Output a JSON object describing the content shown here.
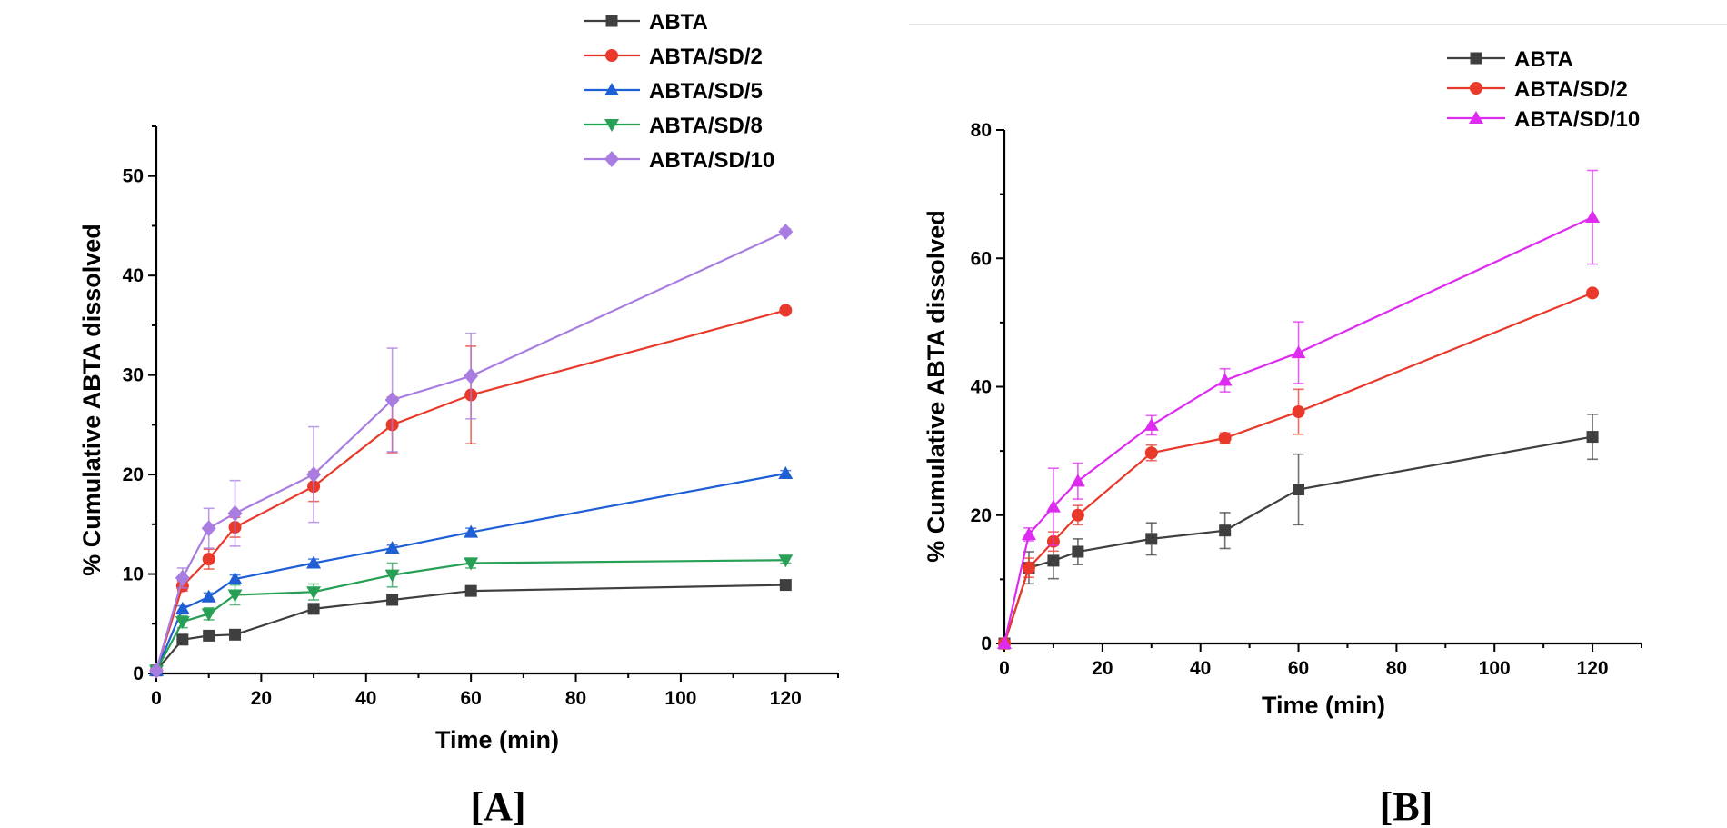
{
  "chart_data": [
    {
      "type": "line",
      "panel_label": "[A]",
      "title": "",
      "xlabel": "Time (min)",
      "ylabel": "% Cumulative ABTA dissolved",
      "xlim": [
        0,
        130
      ],
      "ylim": [
        0,
        55
      ],
      "xticks": [
        0,
        20,
        40,
        60,
        80,
        100,
        120
      ],
      "yticks": [
        0,
        10,
        20,
        30,
        40,
        50
      ],
      "legend": "top-right",
      "x": [
        0,
        5,
        10,
        15,
        30,
        45,
        60,
        120
      ],
      "series": [
        {
          "name": "ABTA",
          "color": "#3f3f3f",
          "marker": "square",
          "values": [
            0.3,
            3.4,
            3.8,
            3.9,
            6.5,
            7.4,
            8.3,
            8.9
          ],
          "errors": [
            0,
            0.3,
            0.3,
            0.3,
            0.4,
            0.4,
            0.3,
            0.3
          ]
        },
        {
          "name": "ABTA/SD/2",
          "color": "#e8392b",
          "marker": "circle",
          "values": [
            0.3,
            8.8,
            11.5,
            14.7,
            18.8,
            25.0,
            28.0,
            36.5
          ],
          "errors": [
            0,
            0.5,
            1.0,
            1.0,
            1.5,
            2.8,
            4.9,
            0.3
          ]
        },
        {
          "name": "ABTA/SD/5",
          "color": "#1f5fd6",
          "marker": "triangle-up",
          "values": [
            0.3,
            6.5,
            7.7,
            9.5,
            11.1,
            12.6,
            14.2,
            20.1
          ],
          "errors": [
            0,
            0.3,
            0.4,
            0.4,
            0.4,
            0.3,
            0.4,
            0.3
          ]
        },
        {
          "name": "ABTA/SD/8",
          "color": "#27a055",
          "marker": "triangle-down",
          "values": [
            0.3,
            5.2,
            6.0,
            7.9,
            8.2,
            9.9,
            11.1,
            11.4
          ],
          "errors": [
            0,
            0.6,
            0.6,
            1.0,
            0.8,
            1.2,
            0.5,
            0.3
          ]
        },
        {
          "name": "ABTA/SD/10",
          "color": "#a87ce0",
          "marker": "diamond",
          "values": [
            0.3,
            9.6,
            14.6,
            16.1,
            20.0,
            27.5,
            29.9,
            44.4
          ],
          "errors": [
            0,
            1.0,
            2.0,
            3.3,
            4.8,
            5.2,
            4.3,
            0.3
          ]
        }
      ]
    },
    {
      "type": "line",
      "panel_label": "[B]",
      "title": "",
      "xlabel": "Time (min)",
      "ylabel": "% Cumulative ABTA dissolved",
      "xlim": [
        0,
        130
      ],
      "ylim": [
        0,
        80
      ],
      "xticks": [
        0,
        20,
        40,
        60,
        80,
        100,
        120
      ],
      "yticks": [
        0,
        20,
        40,
        60,
        80
      ],
      "legend": "top-right",
      "x": [
        0,
        5,
        10,
        15,
        30,
        45,
        60,
        120
      ],
      "series": [
        {
          "name": "ABTA",
          "color": "#3f3f3f",
          "marker": "square",
          "values": [
            0,
            11.8,
            12.9,
            14.3,
            16.3,
            17.6,
            24.0,
            32.2
          ],
          "errors": [
            0,
            2.5,
            2.8,
            2.0,
            2.5,
            2.8,
            5.5,
            3.5
          ]
        },
        {
          "name": "ABTA/SD/2",
          "color": "#e8392b",
          "marker": "circle",
          "values": [
            0,
            11.8,
            15.9,
            20.0,
            29.7,
            32.0,
            36.1,
            54.6
          ],
          "errors": [
            0,
            1.5,
            1.5,
            1.5,
            1.2,
            0.8,
            3.5,
            0.5
          ]
        },
        {
          "name": "ABTA/SD/10",
          "color": "#dd2cf0",
          "marker": "triangle-up",
          "values": [
            0,
            17.0,
            21.3,
            25.3,
            34.0,
            41.0,
            45.3,
            66.4
          ],
          "errors": [
            0,
            1.0,
            6.0,
            2.8,
            1.5,
            1.8,
            4.8,
            7.3
          ]
        }
      ]
    }
  ]
}
